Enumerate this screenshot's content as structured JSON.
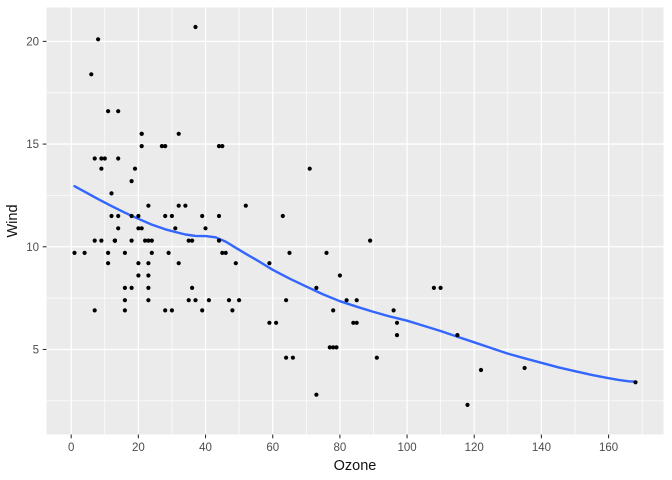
{
  "chart_data": {
    "type": "scatter",
    "title": "",
    "xlabel": "Ozone",
    "ylabel": "Wind",
    "xlim": [
      -7.35,
      176.35
    ],
    "ylim": [
      0.86,
      21.65
    ],
    "x_ticks_major": [
      0,
      20,
      40,
      60,
      80,
      100,
      120,
      140,
      160
    ],
    "x_ticks_minor": [
      10,
      30,
      50,
      70,
      90,
      110,
      130,
      150,
      170
    ],
    "y_ticks_major": [
      5,
      10,
      15,
      20
    ],
    "y_ticks_minor": [
      2.5,
      7.5,
      12.5,
      17.5
    ],
    "grid": true,
    "legend": "none",
    "colors": {
      "page_bg": "#ffffff",
      "panel_bg": "#ebebeb",
      "grid_major": "#ffffff",
      "grid_minor": "#ffffff",
      "tick": "#333333",
      "axis_text": "#4d4d4d",
      "axis_title": "#111111",
      "point": "#000000",
      "smooth_line": "#3366ff"
    },
    "series": [
      {
        "name": "observations",
        "kind": "points",
        "color": "#000000",
        "points": [
          [
            41,
            7.4
          ],
          [
            36,
            8.0
          ],
          [
            12,
            12.6
          ],
          [
            18,
            11.5
          ],
          [
            28,
            14.9
          ],
          [
            23,
            8.6
          ],
          [
            19,
            13.8
          ],
          [
            8,
            20.1
          ],
          [
            7,
            6.9
          ],
          [
            16,
            9.7
          ],
          [
            11,
            9.2
          ],
          [
            14,
            10.9
          ],
          [
            18,
            13.2
          ],
          [
            14,
            11.5
          ],
          [
            34,
            12.0
          ],
          [
            6,
            18.4
          ],
          [
            30,
            11.5
          ],
          [
            11,
            9.7
          ],
          [
            1,
            9.7
          ],
          [
            11,
            16.6
          ],
          [
            4,
            9.7
          ],
          [
            32,
            12.0
          ],
          [
            23,
            12.0
          ],
          [
            45,
            14.9
          ],
          [
            115,
            5.7
          ],
          [
            37,
            7.4
          ],
          [
            29,
            9.7
          ],
          [
            71,
            13.8
          ],
          [
            39,
            11.5
          ],
          [
            23,
            8.0
          ],
          [
            21,
            14.9
          ],
          [
            37,
            20.7
          ],
          [
            20,
            9.2
          ],
          [
            12,
            11.5
          ],
          [
            13,
            10.3
          ],
          [
            135,
            4.1
          ],
          [
            49,
            9.2
          ],
          [
            32,
            9.2
          ],
          [
            64,
            4.6
          ],
          [
            40,
            10.9
          ],
          [
            77,
            5.1
          ],
          [
            97,
            6.3
          ],
          [
            97,
            5.7
          ],
          [
            85,
            7.4
          ],
          [
            10,
            14.3
          ],
          [
            27,
            14.9
          ],
          [
            7,
            14.3
          ],
          [
            48,
            6.9
          ],
          [
            35,
            10.3
          ],
          [
            61,
            6.3
          ],
          [
            79,
            5.1
          ],
          [
            63,
            11.5
          ],
          [
            16,
            6.9
          ],
          [
            80,
            8.6
          ],
          [
            108,
            8.0
          ],
          [
            20,
            8.6
          ],
          [
            52,
            12.0
          ],
          [
            82,
            7.4
          ],
          [
            50,
            7.4
          ],
          [
            64,
            7.4
          ],
          [
            59,
            9.2
          ],
          [
            39,
            6.9
          ],
          [
            9,
            13.8
          ],
          [
            16,
            7.4
          ],
          [
            78,
            6.9
          ],
          [
            35,
            7.4
          ],
          [
            66,
            4.6
          ],
          [
            122,
            4.0
          ],
          [
            89,
            10.3
          ],
          [
            110,
            8.0
          ],
          [
            44,
            11.5
          ],
          [
            28,
            11.5
          ],
          [
            65,
            9.7
          ],
          [
            22,
            10.3
          ],
          [
            59,
            6.3
          ],
          [
            23,
            7.4
          ],
          [
            31,
            10.9
          ],
          [
            44,
            10.3
          ],
          [
            21,
            15.5
          ],
          [
            9,
            14.3
          ],
          [
            45,
            9.7
          ],
          [
            168,
            3.4
          ],
          [
            73,
            8.0
          ],
          [
            76,
            9.7
          ],
          [
            118,
            2.3
          ],
          [
            84,
            6.3
          ],
          [
            85,
            6.3
          ],
          [
            96,
            6.9
          ],
          [
            78,
            5.1
          ],
          [
            73,
            2.8
          ],
          [
            91,
            4.6
          ],
          [
            47,
            7.4
          ],
          [
            32,
            15.5
          ],
          [
            20,
            10.9
          ],
          [
            23,
            10.3
          ],
          [
            21,
            10.9
          ],
          [
            24,
            9.7
          ],
          [
            44,
            14.9
          ],
          [
            21,
            15.5
          ],
          [
            28,
            6.9
          ],
          [
            9,
            10.3
          ],
          [
            13,
            10.3
          ],
          [
            46,
            9.7
          ],
          [
            18,
            10.3
          ],
          [
            13,
            10.3
          ],
          [
            24,
            10.3
          ],
          [
            16,
            8.0
          ],
          [
            13,
            10.3
          ],
          [
            23,
            9.2
          ],
          [
            36,
            10.3
          ],
          [
            7,
            10.3
          ],
          [
            14,
            16.6
          ],
          [
            30,
            6.9
          ],
          [
            14,
            14.3
          ],
          [
            18,
            8.0
          ],
          [
            20,
            11.5
          ]
        ]
      },
      {
        "name": "loess-smooth",
        "kind": "line",
        "color": "#3366ff",
        "points": [
          [
            1,
            12.95
          ],
          [
            4,
            12.68
          ],
          [
            8,
            12.32
          ],
          [
            12,
            11.98
          ],
          [
            16,
            11.66
          ],
          [
            20,
            11.36
          ],
          [
            24,
            11.08
          ],
          [
            28,
            10.85
          ],
          [
            31,
            10.72
          ],
          [
            34,
            10.6
          ],
          [
            37,
            10.53
          ],
          [
            40,
            10.52
          ],
          [
            43,
            10.46
          ],
          [
            46,
            10.25
          ],
          [
            49,
            9.95
          ],
          [
            52,
            9.66
          ],
          [
            56,
            9.28
          ],
          [
            60,
            8.88
          ],
          [
            65,
            8.45
          ],
          [
            70,
            8.06
          ],
          [
            75,
            7.68
          ],
          [
            80,
            7.35
          ],
          [
            85,
            7.08
          ],
          [
            90,
            6.83
          ],
          [
            95,
            6.6
          ],
          [
            100,
            6.4
          ],
          [
            105,
            6.15
          ],
          [
            110,
            5.9
          ],
          [
            115,
            5.62
          ],
          [
            120,
            5.35
          ],
          [
            125,
            5.07
          ],
          [
            130,
            4.8
          ],
          [
            135,
            4.57
          ],
          [
            140,
            4.35
          ],
          [
            145,
            4.13
          ],
          [
            150,
            3.94
          ],
          [
            155,
            3.76
          ],
          [
            160,
            3.6
          ],
          [
            163,
            3.52
          ],
          [
            166,
            3.45
          ],
          [
            168,
            3.43
          ]
        ]
      }
    ]
  }
}
